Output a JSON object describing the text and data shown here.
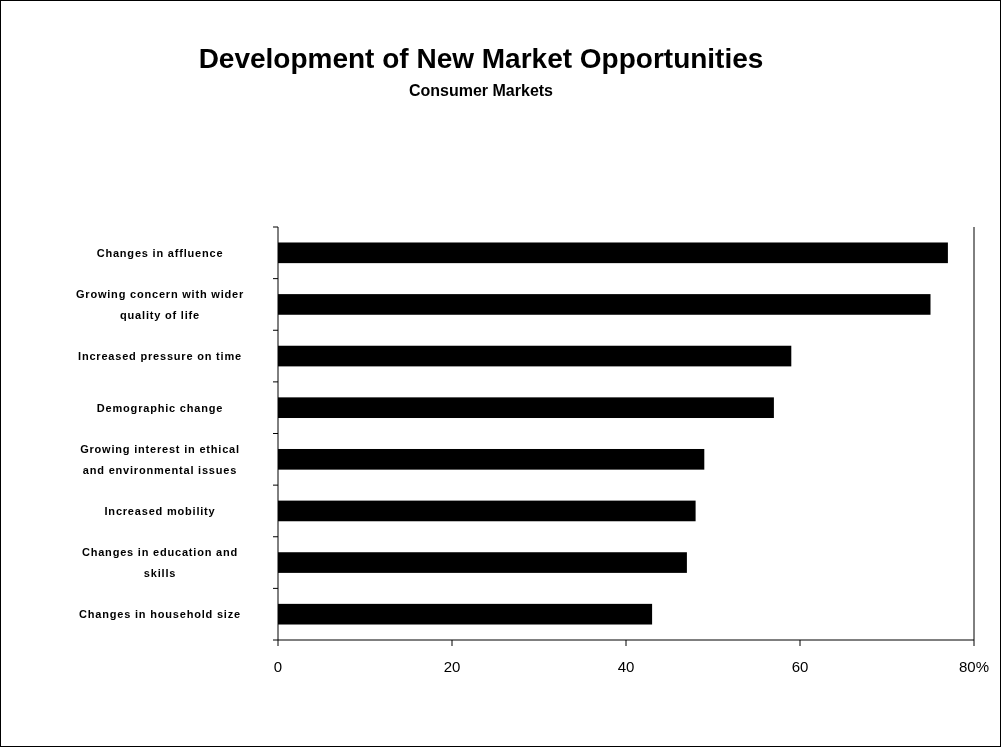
{
  "chart_data": {
    "type": "bar",
    "orientation": "horizontal",
    "title": "Development of New Market Opportunities",
    "subtitle": "Consumer Markets",
    "categories": [
      "Changes in affluence",
      "Growing concern with wider quality of life",
      "Increased pressure on time",
      "Demographic change",
      "Growing interest in ethical and environmental issues",
      "Increased mobility",
      "Changes in education and skills",
      "Changes in household size"
    ],
    "values": [
      77,
      75,
      59,
      57,
      49,
      48,
      47,
      43
    ],
    "color": "#000000",
    "xlim": [
      0,
      80
    ],
    "xticks": [
      0,
      20,
      40,
      60,
      {
        "value": 80,
        "label": "80%"
      }
    ],
    "grid": false
  }
}
